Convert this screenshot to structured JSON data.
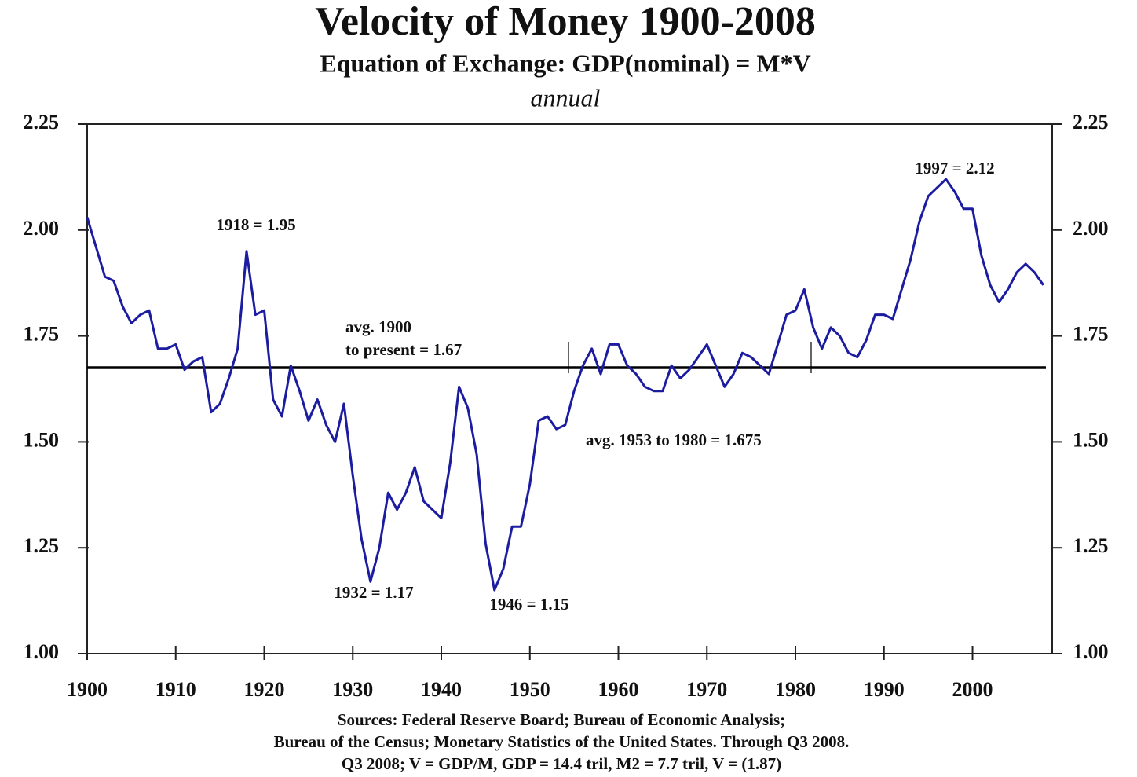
{
  "chart_data": {
    "type": "line",
    "title": "Velocity of Money 1900-2008",
    "subtitle": "Equation of Exchange: GDP(nominal) = M*V",
    "subtitle2": "annual",
    "x": [
      1900,
      1901,
      1902,
      1903,
      1904,
      1905,
      1906,
      1907,
      1908,
      1909,
      1910,
      1911,
      1912,
      1913,
      1914,
      1915,
      1916,
      1917,
      1918,
      1919,
      1920,
      1921,
      1922,
      1923,
      1924,
      1925,
      1926,
      1927,
      1928,
      1929,
      1930,
      1931,
      1932,
      1933,
      1934,
      1935,
      1936,
      1937,
      1938,
      1939,
      1940,
      1941,
      1942,
      1943,
      1944,
      1945,
      1946,
      1947,
      1948,
      1949,
      1950,
      1951,
      1952,
      1953,
      1954,
      1955,
      1956,
      1957,
      1958,
      1959,
      1960,
      1961,
      1962,
      1963,
      1964,
      1965,
      1966,
      1967,
      1968,
      1969,
      1970,
      1971,
      1972,
      1973,
      1974,
      1975,
      1976,
      1977,
      1978,
      1979,
      1980,
      1981,
      1982,
      1983,
      1984,
      1985,
      1986,
      1987,
      1988,
      1989,
      1990,
      1991,
      1992,
      1993,
      1994,
      1995,
      1996,
      1997,
      1998,
      1999,
      2000,
      2001,
      2002,
      2003,
      2004,
      2005,
      2006,
      2007,
      2008
    ],
    "series": [
      {
        "color": "#1c1ca0",
        "values": [
          2.03,
          1.96,
          1.89,
          1.88,
          1.82,
          1.78,
          1.8,
          1.81,
          1.72,
          1.72,
          1.73,
          1.67,
          1.69,
          1.7,
          1.57,
          1.59,
          1.65,
          1.72,
          1.95,
          1.8,
          1.81,
          1.6,
          1.56,
          1.68,
          1.62,
          1.55,
          1.6,
          1.54,
          1.5,
          1.59,
          1.42,
          1.27,
          1.17,
          1.25,
          1.38,
          1.34,
          1.38,
          1.44,
          1.36,
          1.34,
          1.32,
          1.45,
          1.63,
          1.58,
          1.47,
          1.26,
          1.15,
          1.2,
          1.3,
          1.3,
          1.4,
          1.55,
          1.56,
          1.53,
          1.54,
          1.62,
          1.68,
          1.72,
          1.66,
          1.73,
          1.73,
          1.68,
          1.66,
          1.63,
          1.62,
          1.62,
          1.68,
          1.65,
          1.67,
          1.7,
          1.73,
          1.68,
          1.63,
          1.66,
          1.71,
          1.7,
          1.68,
          1.66,
          1.73,
          1.8,
          1.81,
          1.86,
          1.77,
          1.72,
          1.77,
          1.75,
          1.71,
          1.7,
          1.74,
          1.8,
          1.8,
          1.79,
          1.86,
          1.93,
          2.02,
          2.08,
          2.1,
          2.12,
          2.09,
          2.05,
          2.05,
          1.94,
          1.87,
          1.83,
          1.86,
          1.9,
          1.92,
          1.9,
          1.87
        ]
      }
    ],
    "xlim": [
      1900,
      2009
    ],
    "xticks": [
      1900,
      1910,
      1920,
      1930,
      1940,
      1950,
      1960,
      1970,
      1980,
      1990,
      2000
    ],
    "ylim": [
      1.0,
      2.25
    ],
    "yticks": [
      {
        "value": 1,
        "label": "1.00"
      },
      1.25,
      {
        "value": 1.5,
        "label": "1.50"
      },
      1.75,
      {
        "value": 2,
        "label": "2.00"
      },
      2.25
    ],
    "hline": 1.675,
    "annotations": [
      "1918 = 1.95",
      "1932 = 1.17",
      "1946 = 1.15",
      "1997 = 2.12",
      "avg. 1900",
      "to present = 1.67",
      "avg. 1953 to 1980 = 1.675"
    ],
    "sources": [
      "Sources: Federal Reserve Board; Bureau of Economic Analysis;",
      "Bureau of the Census; Monetary Statistics of the United States. Through Q3 2008.",
      "Q3 2008; V = GDP/M, GDP = 14.4 tril, M2 = 7.7 tril, V = (1.87)"
    ]
  }
}
